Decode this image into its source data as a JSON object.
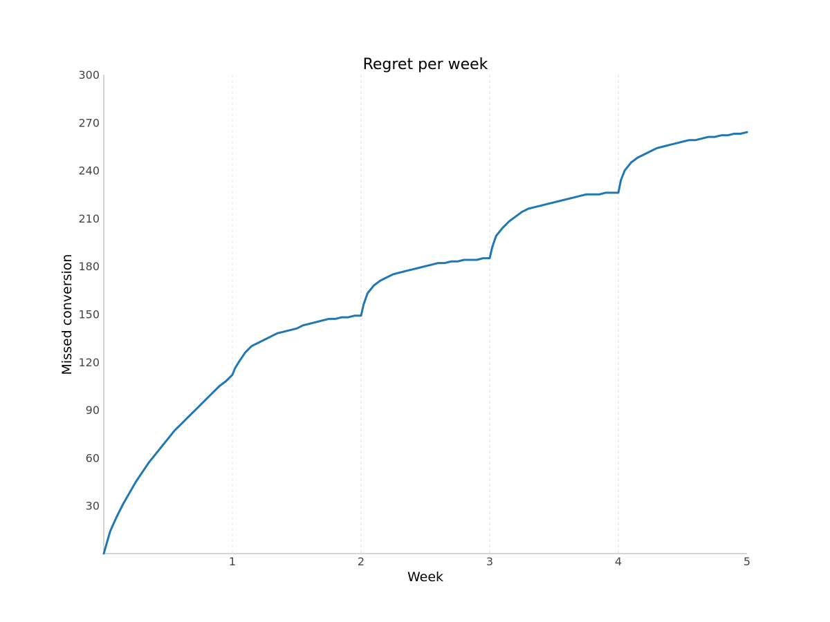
{
  "chart_data": {
    "type": "line",
    "title": "Regret per week",
    "xlabel": "Week",
    "ylabel": "Missed conversion",
    "xlim": [
      0,
      5
    ],
    "ylim": [
      0,
      300
    ],
    "xticks": [
      1,
      2,
      3,
      4,
      5
    ],
    "yticks": [
      30,
      60,
      90,
      120,
      150,
      180,
      210,
      240,
      270,
      300
    ],
    "grid": "vertical-dashed",
    "legend": "none",
    "colors": {
      "line": "#1f77b4",
      "axis": "#aaaaaa",
      "grid": "#e0e0e0"
    },
    "series": [
      {
        "x": [
          0,
          0.05,
          0.1,
          0.15,
          0.2,
          0.25,
          0.3,
          0.35,
          0.4,
          0.45,
          0.5,
          0.55,
          0.6,
          0.65,
          0.7,
          0.75,
          0.8,
          0.85,
          0.9,
          0.95,
          1.0,
          1.02,
          1.05,
          1.1,
          1.15,
          1.2,
          1.25,
          1.3,
          1.35,
          1.4,
          1.45,
          1.5,
          1.55,
          1.6,
          1.65,
          1.7,
          1.75,
          1.8,
          1.85,
          1.9,
          1.95,
          2.0,
          2.02,
          2.05,
          2.1,
          2.15,
          2.2,
          2.25,
          2.3,
          2.35,
          2.4,
          2.45,
          2.5,
          2.55,
          2.6,
          2.65,
          2.7,
          2.75,
          2.8,
          2.85,
          2.9,
          2.95,
          3.0,
          3.02,
          3.05,
          3.1,
          3.15,
          3.2,
          3.25,
          3.3,
          3.35,
          3.4,
          3.45,
          3.5,
          3.55,
          3.6,
          3.65,
          3.7,
          3.75,
          3.8,
          3.85,
          3.9,
          3.95,
          4.0,
          4.02,
          4.05,
          4.1,
          4.15,
          4.2,
          4.25,
          4.3,
          4.35,
          4.4,
          4.45,
          4.5,
          4.55,
          4.6,
          4.65,
          4.7,
          4.75,
          4.8,
          4.85,
          4.9,
          4.95,
          5.0
        ],
        "y": [
          0,
          14,
          23,
          31,
          38,
          45,
          51,
          57,
          62,
          67,
          72,
          77,
          81,
          85,
          89,
          93,
          97,
          101,
          105,
          108,
          112,
          116,
          120,
          126,
          130,
          132,
          134,
          136,
          138,
          139,
          140,
          141,
          143,
          144,
          145,
          146,
          147,
          147,
          148,
          148,
          149,
          149,
          156,
          163,
          168,
          171,
          173,
          175,
          176,
          177,
          178,
          179,
          180,
          181,
          182,
          182,
          183,
          183,
          184,
          184,
          184,
          185,
          185,
          192,
          199,
          204,
          208,
          211,
          214,
          216,
          217,
          218,
          219,
          220,
          221,
          222,
          223,
          224,
          225,
          225,
          225,
          226,
          226,
          226,
          234,
          240,
          245,
          248,
          250,
          252,
          254,
          255,
          256,
          257,
          258,
          259,
          259,
          260,
          261,
          261,
          262,
          262,
          263,
          263,
          264
        ]
      }
    ]
  }
}
